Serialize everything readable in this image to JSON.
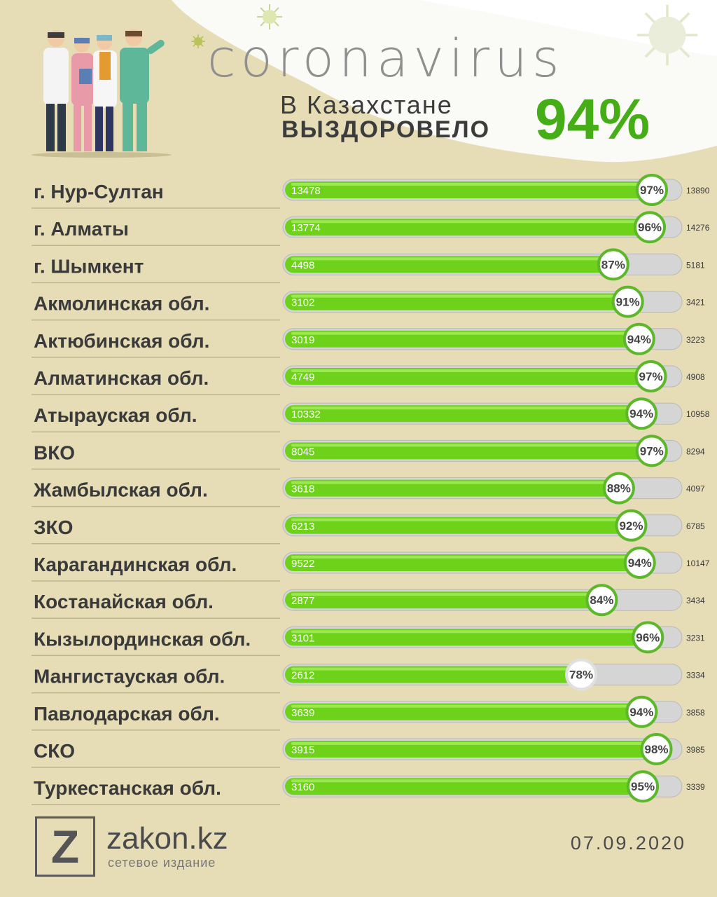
{
  "header": {
    "title": "coronavirus",
    "subtitle_line1": "В Казахстане",
    "subtitle_line2": "ВЫЗДОРОВЕЛО",
    "total_percent": "94%"
  },
  "chart_data": {
    "type": "bar",
    "orientation": "horizontal",
    "categories": [
      "г. Нур-Султан",
      "г. Алматы",
      "г. Шымкент",
      "Акмолинская обл.",
      "Актюбинская обл.",
      "Алматинская обл.",
      "Атырауская обл.",
      "ВКО",
      "Жамбылская обл.",
      "ЗКО",
      "Карагандинская обл.",
      "Костанайская обл.",
      "Кызылординская обл.",
      "Мангистауская обл.",
      "Павлодарская обл.",
      "СКО",
      "Туркестанская обл."
    ],
    "recovered": [
      13478,
      13774,
      4498,
      3102,
      3019,
      4749,
      10332,
      8045,
      3618,
      6213,
      9522,
      2877,
      3101,
      2612,
      3639,
      3915,
      3160
    ],
    "total": [
      13890,
      14276,
      5181,
      3421,
      3223,
      4908,
      10958,
      8294,
      4097,
      6785,
      10147,
      3434,
      3231,
      3334,
      3858,
      3985,
      3339
    ],
    "percent": [
      97,
      96,
      87,
      91,
      94,
      97,
      94,
      97,
      88,
      92,
      94,
      84,
      96,
      78,
      94,
      98,
      95
    ],
    "percent_sign": "%",
    "colors": {
      "bar_fill": "#6fd21a",
      "track": "#d5d5d5",
      "ring": "#5cb82a",
      "low_ring": "#e0e0e0"
    }
  },
  "footer": {
    "logo_letter": "Z",
    "site_name": "zakon.kz",
    "tagline": "сетевое издание",
    "date": "07.09.2020"
  }
}
